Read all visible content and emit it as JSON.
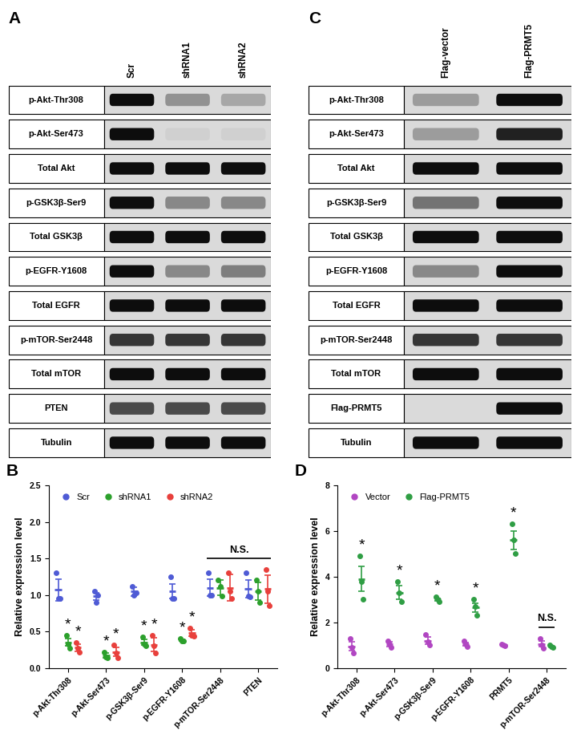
{
  "blots": [
    {
      "panel": "A",
      "lanes": [
        "Scr",
        "shRNA1",
        "shRNA2"
      ],
      "rows": [
        {
          "label": "p-Akt-Thr308",
          "intensity": [
            1,
            0.35,
            0.25
          ]
        },
        {
          "label": "p-Akt-Ser473",
          "intensity": [
            1,
            0.05,
            0.05
          ]
        },
        {
          "label": "Total Akt",
          "intensity": [
            1,
            1,
            1
          ]
        },
        {
          "label": "p-GSK3β-Ser9",
          "intensity": [
            1,
            0.4,
            0.4
          ]
        },
        {
          "label": "Total GSK3β",
          "intensity": [
            1,
            1,
            1
          ]
        },
        {
          "label": "p-EGFR-Y1608",
          "intensity": [
            1,
            0.4,
            0.45
          ]
        },
        {
          "label": "Total EGFR",
          "intensity": [
            1,
            1,
            1
          ]
        },
        {
          "label": "p-mTOR-Ser2448",
          "intensity": [
            0.8,
            0.8,
            0.8
          ]
        },
        {
          "label": "Total mTOR",
          "intensity": [
            1,
            1,
            1
          ]
        },
        {
          "label": "PTEN",
          "intensity": [
            0.7,
            0.7,
            0.7
          ]
        },
        {
          "label": "Tubulin",
          "intensity": [
            1,
            1,
            1
          ]
        }
      ]
    },
    {
      "panel": "C",
      "lanes": [
        "Flag-vector",
        "Flag-PRMT5"
      ],
      "rows": [
        {
          "label": "p-Akt-Thr308",
          "intensity": [
            0.3,
            1
          ]
        },
        {
          "label": "p-Akt-Ser473",
          "intensity": [
            0.3,
            0.9
          ]
        },
        {
          "label": "Total Akt",
          "intensity": [
            1,
            1
          ]
        },
        {
          "label": "p-GSK3β-Ser9",
          "intensity": [
            0.5,
            1
          ]
        },
        {
          "label": "Total GSK3β",
          "intensity": [
            1,
            1
          ]
        },
        {
          "label": "p-EGFR-Y1608",
          "intensity": [
            0.4,
            1
          ]
        },
        {
          "label": "Total EGFR",
          "intensity": [
            1,
            1
          ]
        },
        {
          "label": "p-mTOR-Ser2448",
          "intensity": [
            0.8,
            0.8
          ]
        },
        {
          "label": "Total mTOR",
          "intensity": [
            1,
            1
          ]
        },
        {
          "label": "Flag-PRMT5",
          "intensity": [
            0,
            1
          ]
        },
        {
          "label": "Tubulin",
          "intensity": [
            1,
            1
          ]
        }
      ]
    }
  ],
  "chart_data": [
    {
      "panel": "B",
      "type": "dotplot",
      "y_label": "Relative expression level",
      "categories": [
        "p-Akt-Thr308",
        "p-Akt-Ser473",
        "p-GSK3β-Ser9",
        "p-EGFR-Y1608",
        "p-mTOR-Ser2448",
        "PTEN"
      ],
      "ylim": [
        0,
        2.5
      ],
      "yticks": [
        {
          "value": 0,
          "label": "0.0"
        },
        0.5,
        {
          "value": 1,
          "label": "1.0"
        },
        1.5,
        {
          "value": 2,
          "label": "2.0"
        },
        2.5
      ],
      "legend": "upper left",
      "series": [
        {
          "name": "Scr",
          "color": "#4f5bd5",
          "values": [
            1.07,
            0.98,
            1.05,
            1.05,
            1.1,
            1.08
          ],
          "errors": [
            0.15,
            0.05,
            0.06,
            0.1,
            0.12,
            0.12
          ],
          "points": [
            [
              1.3,
              0.95,
              0.95
            ],
            [
              1.05,
              0.9,
              1.0
            ],
            [
              1.12,
              1.0,
              1.03
            ],
            [
              1.25,
              0.95,
              0.95
            ],
            [
              1.3,
              1.0,
              1.0
            ],
            [
              1.3,
              0.98,
              0.97
            ]
          ]
        },
        {
          "name": "shRNA1",
          "color": "#2ca02c",
          "values": [
            0.35,
            0.17,
            0.35,
            0.38,
            1.1,
            1.05
          ],
          "errors": [
            0.05,
            0.03,
            0.04,
            0.01,
            0.1,
            0.12
          ],
          "points": [
            [
              0.45,
              0.33,
              0.27
            ],
            [
              0.22,
              0.15,
              0.14
            ],
            [
              0.42,
              0.33,
              0.3
            ],
            [
              0.4,
              0.37,
              0.37
            ],
            [
              1.2,
              1.12,
              0.98
            ],
            [
              1.2,
              1.05,
              0.9
            ]
          ]
        },
        {
          "name": "shRNA2",
          "color": "#e8403c",
          "values": [
            0.28,
            0.22,
            0.32,
            0.48,
            1.1,
            1.08
          ],
          "errors": [
            0.05,
            0.06,
            0.09,
            0.04,
            0.18,
            0.19
          ],
          "points": [
            [
              0.35,
              0.27,
              0.22
            ],
            [
              0.32,
              0.2,
              0.14
            ],
            [
              0.45,
              0.3,
              0.21
            ],
            [
              0.55,
              0.45,
              0.44
            ],
            [
              1.3,
              1.05,
              0.95
            ],
            [
              1.35,
              1.05,
              0.85
            ]
          ]
        }
      ],
      "annotations": [
        {
          "text": "*",
          "category": "p-Akt-Thr308",
          "series": "shRNA1"
        },
        {
          "text": "*",
          "category": "p-Akt-Thr308",
          "series": "shRNA2"
        },
        {
          "text": "*",
          "category": "p-Akt-Ser473",
          "series": "shRNA1"
        },
        {
          "text": "*",
          "category": "p-Akt-Ser473",
          "series": "shRNA2"
        },
        {
          "text": "*",
          "category": "p-GSK3β-Ser9",
          "series": "shRNA1"
        },
        {
          "text": "*",
          "category": "p-GSK3β-Ser9",
          "series": "shRNA2"
        },
        {
          "text": "*",
          "category": "p-EGFR-Y1608",
          "series": "shRNA1"
        },
        {
          "text": "*",
          "category": "p-EGFR-Y1608",
          "series": "shRNA2"
        },
        {
          "text": "N.S.",
          "categories": [
            "p-mTOR-Ser2448",
            "PTEN"
          ]
        }
      ]
    },
    {
      "panel": "D",
      "type": "dotplot",
      "y_label": "Relative expression level",
      "categories": [
        "p-Akt-Thr308",
        "p-Akt-Ser473",
        "p-GSK3β-Ser9",
        "p-EGFR-Y1608",
        "PRMT5",
        "p-mTOR-Ser2448"
      ],
      "ylim": [
        0,
        8
      ],
      "yticks": [
        0,
        2,
        4,
        6,
        8
      ],
      "legend": "upper left",
      "series": [
        {
          "name": "Vector",
          "color": "#b146c2",
          "values": [
            0.95,
            1.05,
            1.2,
            1.05,
            1.0,
            1.05
          ],
          "errors": [
            0.2,
            0.1,
            0.15,
            0.08,
            0.03,
            0.13
          ],
          "points": [
            [
              1.3,
              0.9,
              0.65
            ],
            [
              1.2,
              1.05,
              0.9
            ],
            [
              1.45,
              1.15,
              1.0
            ],
            [
              1.2,
              1.05,
              0.95
            ],
            [
              1.05,
              1.0,
              0.97
            ],
            [
              1.3,
              1.0,
              0.85
            ]
          ]
        },
        {
          "name": "Flag-PRMT5",
          "color": "#2f9e44",
          "values": [
            3.9,
            3.3,
            3.0,
            2.65,
            5.6,
            0.95
          ],
          "errors": [
            0.55,
            0.3,
            0.06,
            0.2,
            0.4,
            0.03
          ],
          "points": [
            [
              4.9,
              3.8,
              3.0
            ],
            [
              3.8,
              3.3,
              2.9
            ],
            [
              3.1,
              3.0,
              2.9
            ],
            [
              3.0,
              2.7,
              2.3
            ],
            [
              6.3,
              5.6,
              5.0
            ],
            [
              1.0,
              0.95,
              0.9
            ]
          ]
        }
      ],
      "annotations": [
        {
          "text": "*",
          "category": "p-Akt-Thr308",
          "series": "Flag-PRMT5"
        },
        {
          "text": "*",
          "category": "p-Akt-Ser473",
          "series": "Flag-PRMT5"
        },
        {
          "text": "*",
          "category": "p-GSK3β-Ser9",
          "series": "Flag-PRMT5"
        },
        {
          "text": "*",
          "category": "p-EGFR-Y1608",
          "series": "Flag-PRMT5"
        },
        {
          "text": "*",
          "category": "PRMT5",
          "series": "Flag-PRMT5"
        },
        {
          "text": "N.S.",
          "categories": [
            "p-mTOR-Ser2448"
          ]
        }
      ]
    }
  ]
}
